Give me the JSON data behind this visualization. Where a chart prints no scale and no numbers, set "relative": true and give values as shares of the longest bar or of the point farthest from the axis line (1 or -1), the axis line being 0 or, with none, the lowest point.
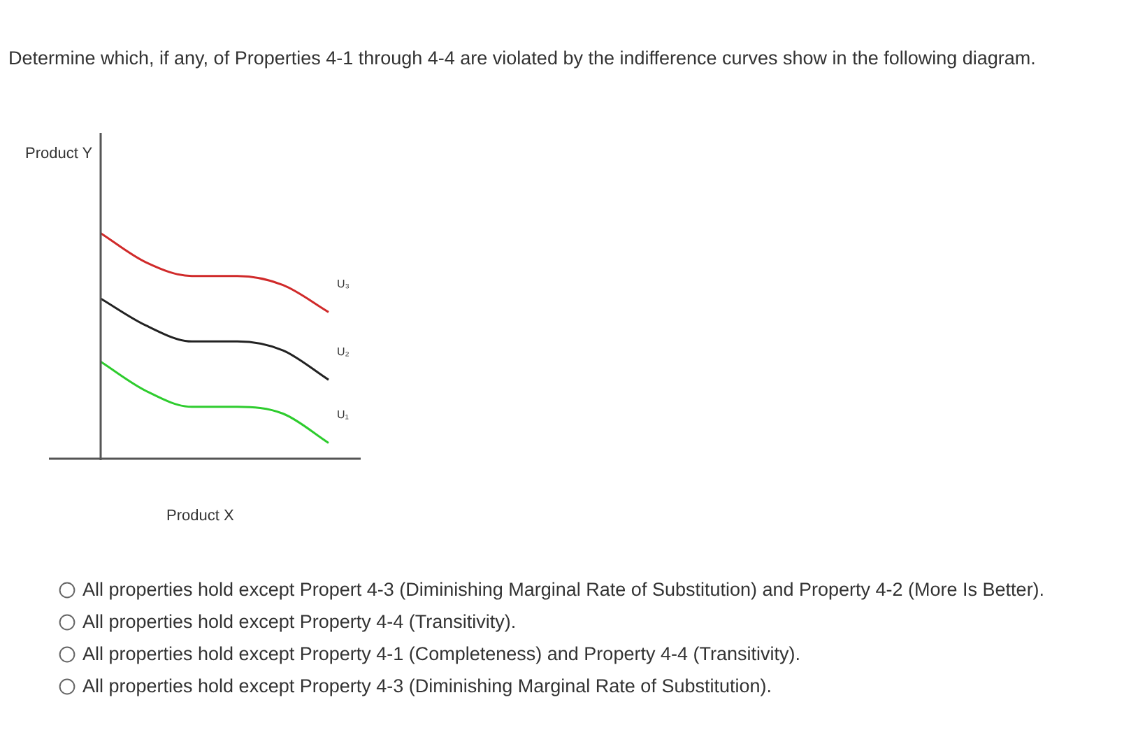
{
  "chart_data": {
    "type": "line",
    "relative": true,
    "title": "Determine which, if any, of Properties 4-1 through 4-4 are violated by the indifference curves show in the following diagram.",
    "ylabel": "Product Y",
    "xlabel": "Product X",
    "categories": [
      null,
      null,
      null,
      null,
      null,
      null
    ],
    "series": [
      {
        "name": "U₃",
        "color": "#d02a2a",
        "values": [
          1,
          0.87,
          0.81,
          0.81,
          0.77,
          0.65
        ]
      },
      {
        "name": "U₂",
        "color": "#222222",
        "values": [
          0.71,
          0.59,
          0.52,
          0.52,
          0.48,
          0.35
        ]
      },
      {
        "name": "U₁",
        "color": "#2ecc2e",
        "values": [
          0.43,
          0.3,
          0.23,
          0.23,
          0.2,
          0.07
        ]
      }
    ],
    "annotations": [
      "All properties hold except Propert 4-3 (Diminishing Marginal Rate of Substitution) and Property 4-2 (More Is Better).",
      "All properties hold except Property 4-4 (Transitivity).",
      "All properties hold except Property 4-1 (Completeness) and Property 4-4 (Transitivity).",
      "All properties hold except Property 4-3 (Diminishing Marginal Rate of Substitution)."
    ]
  }
}
